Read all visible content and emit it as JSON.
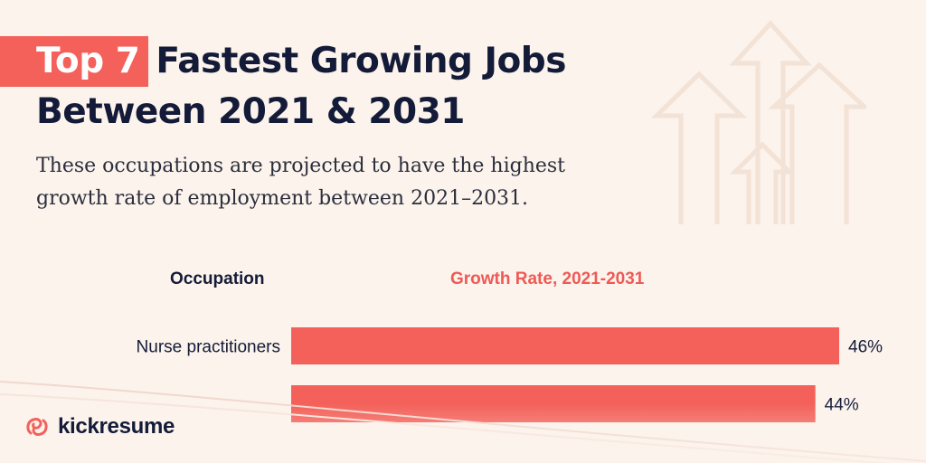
{
  "header": {
    "title_highlight": "Top 7",
    "title_rest": "Fastest Growing Jobs",
    "title_line2": "Between 2021 & 2031",
    "subtitle": "These occupations are projected to have the highest growth rate of employment between 2021–2031."
  },
  "columns": {
    "occupation": "Occupation",
    "growth": "Growth Rate, 2021-2031"
  },
  "brand": {
    "name": "kickresume",
    "accent": "#f4605a",
    "ink": "#141b38"
  },
  "chart_data": {
    "type": "bar",
    "orientation": "horizontal",
    "categories": [
      "Nurse practitioners",
      ""
    ],
    "values": [
      46,
      44
    ],
    "value_labels": [
      "46%",
      "44%"
    ],
    "xlim": [
      0,
      46
    ],
    "color": "#f4605a"
  }
}
